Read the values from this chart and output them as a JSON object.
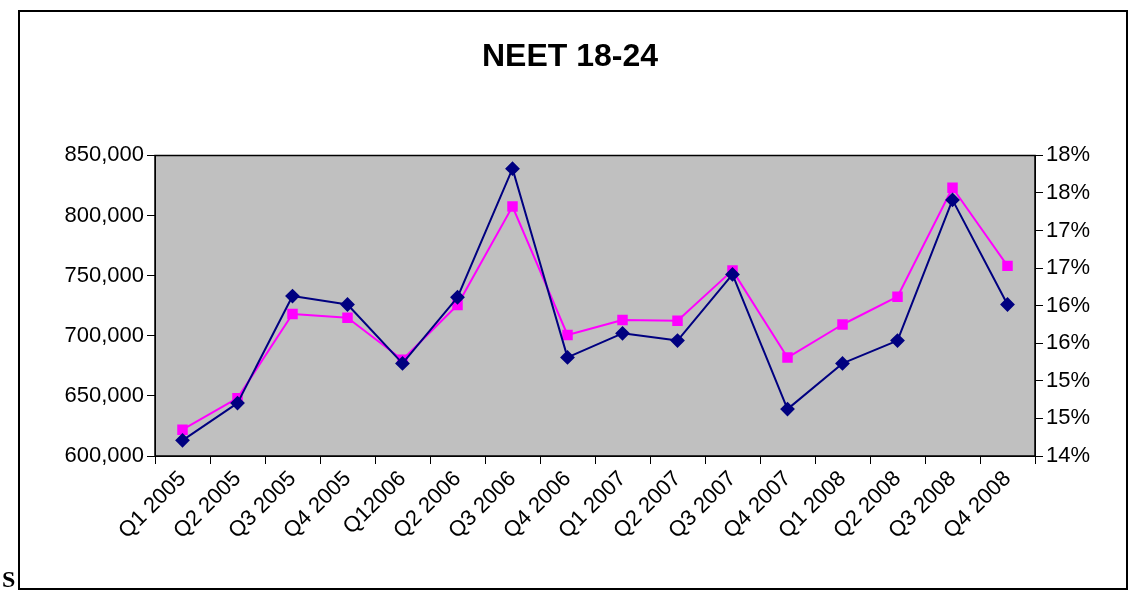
{
  "chart_data": {
    "type": "line",
    "title": "NEET 18-24",
    "categories": [
      "Q1 2005",
      "Q2 2005",
      "Q3 2005",
      "Q4 2005",
      "Q12006",
      "Q2 2006",
      "Q3 2006",
      "Q4 2006",
      "Q1 2007",
      "Q2 2007",
      "Q3 2007",
      "Q4 2007",
      "Q1 2008",
      "Q2 2008",
      "Q3 2008",
      "Q4 2008"
    ],
    "series": [
      {
        "color": "#000080",
        "marker": "diamond",
        "values": [
          613000,
          644000,
          733000,
          726000,
          677000,
          732000,
          839000,
          682000,
          702000,
          696000,
          751000,
          639000,
          677000,
          696000,
          813000,
          726000
        ]
      },
      {
        "color": "#ff00ff",
        "marker": "square",
        "axis": "y2",
        "values": [
          14.35,
          14.77,
          15.89,
          15.84,
          15.28,
          16.01,
          17.32,
          15.61,
          15.81,
          15.8,
          16.47,
          15.31,
          15.75,
          16.12,
          17.57,
          16.53
        ]
      }
    ],
    "ylim": [
      600000,
      850000
    ],
    "yticks": [
      {
        "value": 600000,
        "label": "600,000"
      },
      {
        "value": 650000,
        "label": "650,000"
      },
      {
        "value": 700000,
        "label": "700,000"
      },
      {
        "value": 750000,
        "label": "750,000"
      },
      {
        "value": 800000,
        "label": "800,000"
      },
      {
        "value": 850000,
        "label": "850,000"
      }
    ],
    "y2lim": [
      14,
      18
    ],
    "y2ticks": [
      {
        "value": 14,
        "label": "14%"
      },
      {
        "value": 14.5,
        "label": "15%"
      },
      {
        "value": 15,
        "label": "15%"
      },
      {
        "value": 15.5,
        "label": "16%"
      },
      {
        "value": 16,
        "label": "16%"
      },
      {
        "value": 16.5,
        "label": "17%"
      },
      {
        "value": 17,
        "label": "17%"
      },
      {
        "value": 17.5,
        "label": "18%"
      },
      {
        "value": 18,
        "label": "18%"
      }
    ],
    "grid": false,
    "legend": false,
    "annotations": [
      "S"
    ]
  }
}
